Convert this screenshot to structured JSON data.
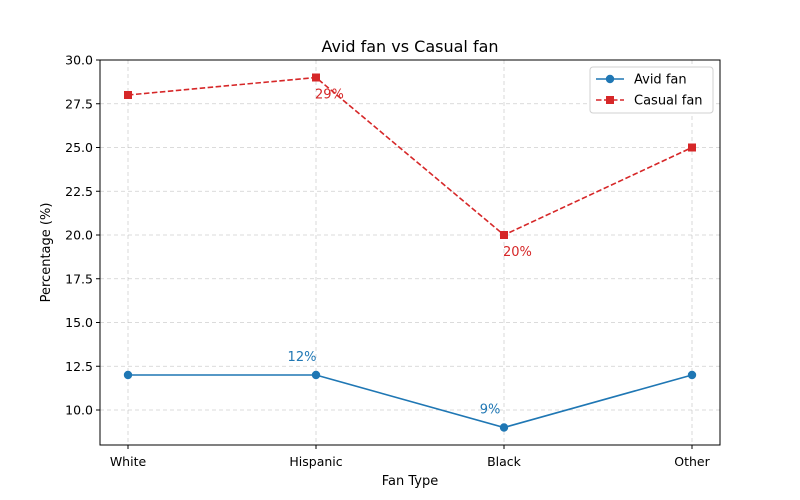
{
  "chart_data": {
    "type": "line",
    "title": "Avid fan vs Casual fan",
    "xlabel": "Fan Type",
    "ylabel": "Percentage (%)",
    "categories": [
      "White",
      "Hispanic",
      "Black",
      "Other"
    ],
    "ylim": [
      8,
      30
    ],
    "yticks": [
      "10.0",
      "12.5",
      "15.0",
      "17.5",
      "20.0",
      "22.5",
      "25.0",
      "27.5",
      "30.0"
    ],
    "grid": true,
    "legend_position": "top-right",
    "series": [
      {
        "name": "Avid fan",
        "values": [
          12,
          12,
          9,
          12
        ],
        "color": "#1f77b4",
        "marker": "circle",
        "line_style": "solid",
        "annotations": [
          {
            "index": 1,
            "text": "12%"
          },
          {
            "index": 2,
            "text": "9%"
          }
        ]
      },
      {
        "name": "Casual fan",
        "values": [
          28,
          29,
          20,
          25
        ],
        "color": "#d62728",
        "marker": "square",
        "line_style": "dashed",
        "annotations": [
          {
            "index": 1,
            "text": "29%"
          },
          {
            "index": 2,
            "text": "20%"
          }
        ]
      }
    ]
  }
}
